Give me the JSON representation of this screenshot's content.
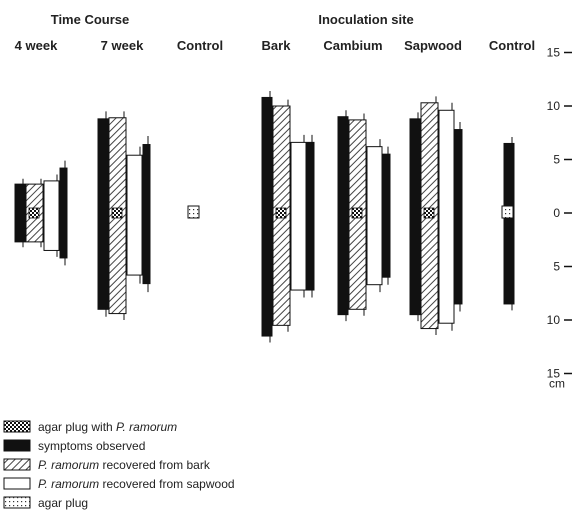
{
  "chart_data": {
    "type": "bar",
    "group_titles": [
      "Time Course",
      "Inoculation site"
    ],
    "categories": [
      "4 week",
      "7 week",
      "Control",
      "Bark",
      "Cambium",
      "Sapwood",
      "Control"
    ],
    "y_axis": {
      "ticks": [
        15,
        10,
        5,
        0,
        5,
        10,
        15
      ],
      "unit": "cm",
      "ylim": [
        -15,
        15
      ]
    },
    "series": [
      {
        "name": "symptoms observed",
        "style": "solid",
        "values": [
          [
            -2.7,
            2.7
          ],
          [
            -9,
            8.8
          ],
          null,
          [
            -11.5,
            10.8
          ],
          [
            -9.5,
            9
          ],
          [
            -9.5,
            8.8
          ],
          [
            -8.5,
            6.5
          ]
        ],
        "errors": [
          [
            0.5,
            0.5
          ],
          [
            0.7,
            0.7
          ],
          null,
          [
            0.6,
            0.6
          ],
          [
            0.6,
            0.6
          ],
          [
            0.6,
            0.6
          ],
          [
            0.6,
            0.6
          ]
        ]
      },
      {
        "name": "P. ramorum recovered from bark",
        "style": "hatched",
        "values": [
          [
            -2.7,
            2.7
          ],
          [
            -9.4,
            8.9
          ],
          null,
          [
            -10.5,
            10.0
          ],
          [
            -9.0,
            8.7
          ],
          [
            -10.8,
            10.3
          ],
          null
        ],
        "errors": [
          [
            0.5,
            0.5
          ],
          [
            0.6,
            0.6
          ],
          null,
          [
            0.6,
            0.6
          ],
          [
            0.6,
            0.6
          ],
          [
            0.6,
            0.6
          ],
          null
        ]
      },
      {
        "name": "P. ramorum recovered from sapwood",
        "style": "open",
        "values": [
          [
            -3.5,
            3.0
          ],
          [
            -5.8,
            5.4
          ],
          null,
          [
            -7.2,
            6.6
          ],
          [
            -6.7,
            6.2
          ],
          [
            -10.3,
            9.6
          ],
          null
        ],
        "errors": [
          [
            0.6,
            0.6
          ],
          [
            0.8,
            0.8
          ],
          null,
          [
            0.7,
            0.7
          ],
          [
            0.7,
            0.7
          ],
          [
            0.7,
            0.7
          ],
          null
        ]
      },
      {
        "name": "symptoms observed",
        "style": "solid",
        "values": [
          [
            -4.2,
            4.2
          ],
          [
            -6.6,
            6.4
          ],
          null,
          [
            -7.2,
            6.6
          ],
          [
            -6.0,
            5.5
          ],
          [
            -8.5,
            7.8
          ],
          null
        ],
        "errors": [
          [
            0.7,
            0.7
          ],
          [
            0.8,
            0.8
          ],
          null,
          [
            0.7,
            0.7
          ],
          [
            0.7,
            0.7
          ],
          [
            0.7,
            0.7
          ],
          null
        ]
      }
    ],
    "legend": [
      {
        "label_prefix": "agar plug with ",
        "label_italic": "P. ramorum",
        "label_suffix": "",
        "swatch": "checker"
      },
      {
        "label_prefix": "symptoms observed",
        "label_italic": "",
        "label_suffix": "",
        "swatch": "solid"
      },
      {
        "label_prefix": "",
        "label_italic": "P. ramorum",
        "label_suffix": " recovered from bark",
        "swatch": "hatched"
      },
      {
        "label_prefix": "",
        "label_italic": "P. ramorum",
        "label_suffix": " recovered from sapwood",
        "swatch": "open"
      },
      {
        "label_prefix": "agar plug",
        "label_italic": "",
        "label_suffix": "",
        "swatch": "plug"
      }
    ],
    "legend_position": "bottom-left",
    "grid": false
  },
  "colors": {
    "ink": "#111111",
    "hatch": "#555555",
    "background": "#ffffff"
  }
}
